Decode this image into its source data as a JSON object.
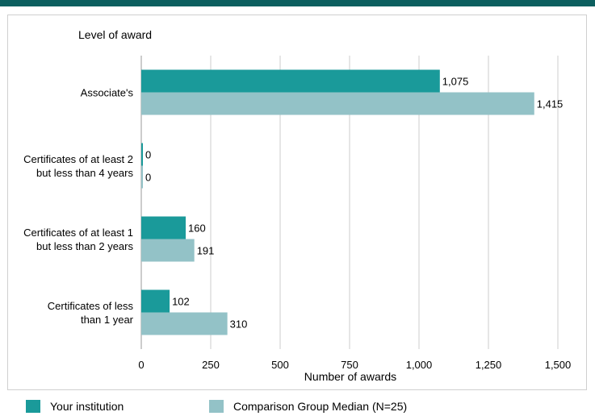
{
  "chart_data": {
    "type": "bar",
    "orientation": "horizontal",
    "y_axis_title": "Level of award",
    "xlabel": "Number of awards",
    "categories": [
      "Associate's",
      "Certificates of at least 2 but less than 4 years",
      "Certificates of at least 1 but less than 2 years",
      "Certificates of less than 1 year"
    ],
    "category_lines": [
      [
        "Associate's"
      ],
      [
        "Certificates of at least 2",
        "but less than 4 years"
      ],
      [
        "Certificates of at least 1",
        "but  less than 2 years"
      ],
      [
        "Certificates of less",
        "than 1 year"
      ]
    ],
    "series": [
      {
        "name": "Your institution",
        "values": [
          1075,
          0,
          160,
          102
        ],
        "color": "#1a9a9a"
      },
      {
        "name": "Comparison Group Median (N=25)",
        "values": [
          1415,
          0,
          191,
          310
        ],
        "color": "#93c2c7"
      }
    ],
    "xlim": [
      0,
      1500
    ],
    "xticks": [
      0,
      250,
      500,
      750,
      1000,
      1250,
      1500
    ],
    "xtick_labels": [
      "0",
      "250",
      "500",
      "750",
      "1,000",
      "1,250",
      "1,500"
    ],
    "grid": true,
    "legend_position": "bottom"
  },
  "colors": {
    "header_bar": "#0d5f5f",
    "grid": "#cccccc"
  }
}
